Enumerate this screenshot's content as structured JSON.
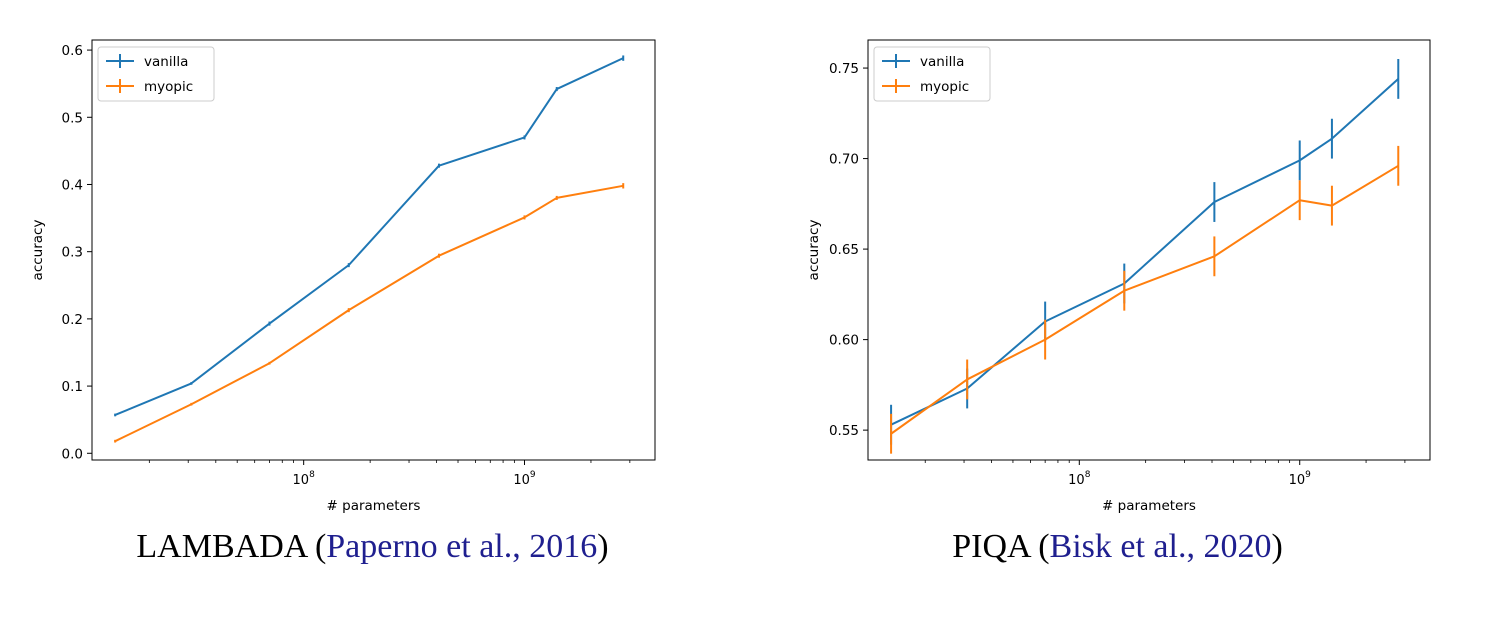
{
  "chart_data": [
    {
      "type": "line",
      "xlabel": "# parameters",
      "ylabel": "accuracy",
      "xscale": "log",
      "xlim": [
        11000000,
        3900000000
      ],
      "ylim": [
        -0.01,
        0.615
      ],
      "x_ticks": [
        {
          "value": 100000000,
          "base": "10",
          "exp": "8"
        },
        {
          "value": 1000000000,
          "base": "10",
          "exp": "9"
        }
      ],
      "y_ticks": [
        "0.0",
        "0.1",
        "0.2",
        "0.3",
        "0.4",
        "0.5",
        "0.6"
      ],
      "y_tick_values": [
        0.0,
        0.1,
        0.2,
        0.3,
        0.4,
        0.5,
        0.6
      ],
      "legend_position": "top-left",
      "grid": false,
      "x": [
        14000000,
        31000000,
        70000000,
        160000000,
        410000000,
        1000000000,
        1400000000,
        2800000000
      ],
      "series": [
        {
          "name": "vanilla",
          "color": "#1f77b4",
          "values": [
            0.057,
            0.104,
            0.193,
            0.28,
            0.428,
            0.47,
            0.542,
            0.588
          ],
          "errors": [
            0.002,
            0.002,
            0.003,
            0.003,
            0.003,
            0.003,
            0.003,
            0.004
          ]
        },
        {
          "name": "myopic",
          "color": "#ff7f0e",
          "values": [
            0.018,
            0.073,
            0.134,
            0.213,
            0.294,
            0.351,
            0.38,
            0.398
          ],
          "errors": [
            0.002,
            0.002,
            0.002,
            0.003,
            0.003,
            0.003,
            0.003,
            0.004
          ]
        }
      ]
    },
    {
      "type": "line",
      "xlabel": "# parameters",
      "ylabel": "accuracy",
      "xscale": "log",
      "xlim": [
        11000000,
        3900000000
      ],
      "ylim": [
        0.5335,
        0.7655
      ],
      "x_ticks": [
        {
          "value": 100000000,
          "base": "10",
          "exp": "8"
        },
        {
          "value": 1000000000,
          "base": "10",
          "exp": "9"
        }
      ],
      "y_ticks": [
        "0.55",
        "0.60",
        "0.65",
        "0.70",
        "0.75"
      ],
      "y_tick_values": [
        0.55,
        0.6,
        0.65,
        0.7,
        0.75
      ],
      "legend_position": "top-left",
      "grid": false,
      "x": [
        14000000,
        31000000,
        70000000,
        160000000,
        410000000,
        1000000000,
        1400000000,
        2800000000
      ],
      "series": [
        {
          "name": "vanilla",
          "color": "#1f77b4",
          "values": [
            0.553,
            0.573,
            0.61,
            0.631,
            0.676,
            0.699,
            0.711,
            0.744
          ],
          "errors": [
            0.011,
            0.011,
            0.011,
            0.011,
            0.011,
            0.011,
            0.011,
            0.011
          ]
        },
        {
          "name": "myopic",
          "color": "#ff7f0e",
          "values": [
            0.548,
            0.578,
            0.6,
            0.627,
            0.646,
            0.677,
            0.674,
            0.696
          ],
          "errors": [
            0.011,
            0.011,
            0.011,
            0.011,
            0.011,
            0.011,
            0.011,
            0.011
          ]
        }
      ]
    }
  ],
  "captions": [
    {
      "name": "LAMBADA",
      "open": " (",
      "cite": "Paperno et al., 2016",
      "close": ")"
    },
    {
      "name": "PIQA",
      "open": " (",
      "cite": "Bisk et al., 2020",
      "close": ")"
    }
  ]
}
